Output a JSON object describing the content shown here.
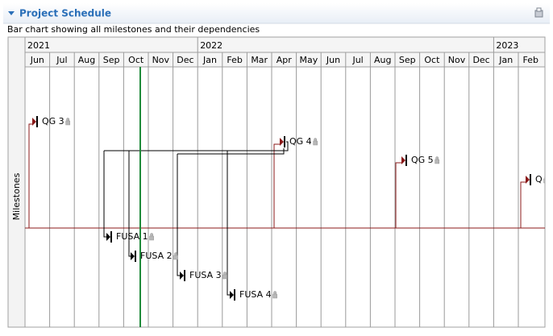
{
  "header": {
    "title": "Project Schedule",
    "subtitle": "Bar chart showing all milestones and their dependencies"
  },
  "axis_label": "Milestones",
  "years": [
    "2021",
    "2022",
    "2023"
  ],
  "months": [
    "Jun",
    "Jul",
    "Aug",
    "Sep",
    "Oct",
    "Nov",
    "Dec",
    "Jan",
    "Feb",
    "Mar",
    "Apr",
    "May",
    "Jun",
    "Jul",
    "Aug",
    "Sep",
    "Oct",
    "Nov",
    "Dec",
    "Jan",
    "Feb"
  ],
  "milestones": [
    {
      "label": "QG 3"
    },
    {
      "label": "QG 4"
    },
    {
      "label": "QG 5"
    },
    {
      "label": "Q"
    },
    {
      "label": "FUSA 1"
    },
    {
      "label": "FUSA 2"
    },
    {
      "label": "FUSA 3"
    },
    {
      "label": "FUSA 4"
    }
  ]
}
